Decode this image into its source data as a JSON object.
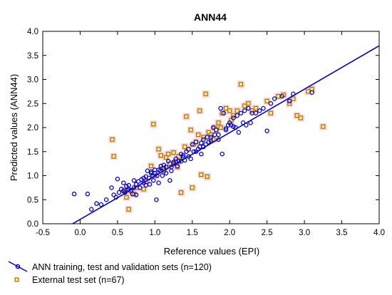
{
  "chart_data": {
    "type": "scatter",
    "title": "ANN44",
    "xlabel": "Reference values (EPI)",
    "ylabel": "Predicted values (ANN44)",
    "xlim": [
      -0.5,
      4.0
    ],
    "ylim": [
      0.0,
      4.0
    ],
    "x_ticks": [
      "-0.5",
      "0.0",
      "0.5",
      "1.0",
      "1.5",
      "2.0",
      "2.5",
      "3.0",
      "3.5",
      "4.0"
    ],
    "y_ticks": [
      "0.0",
      "0.5",
      "1.0",
      "1.5",
      "2.0",
      "2.5",
      "3.0",
      "3.5",
      "4.0"
    ],
    "grid": false,
    "legend_position": "bottom-left",
    "fit_line": {
      "x": [
        -0.1,
        4.0
      ],
      "y": [
        0.0,
        3.7
      ],
      "color": "#0000cc"
    },
    "series": [
      {
        "name": "ANN training, test and validation sets (n=120)",
        "marker": "circle",
        "color": "#0000cc",
        "x": [
          -0.08,
          0.1,
          0.15,
          0.22,
          0.28,
          0.35,
          0.42,
          0.45,
          0.48,
          0.5,
          0.52,
          0.55,
          0.58,
          0.6,
          0.62,
          0.63,
          0.65,
          0.68,
          0.7,
          0.72,
          0.75,
          0.78,
          0.8,
          0.82,
          0.85,
          0.88,
          0.9,
          0.92,
          0.93,
          0.95,
          0.97,
          0.98,
          1.0,
          1.02,
          1.03,
          1.05,
          1.07,
          1.08,
          1.1,
          1.12,
          1.15,
          1.18,
          1.2,
          1.22,
          1.25,
          1.28,
          1.3,
          1.32,
          1.35,
          1.38,
          1.4,
          1.42,
          1.45,
          1.48,
          1.5,
          1.52,
          1.55,
          1.58,
          1.6,
          1.62,
          1.65,
          1.68,
          1.7,
          1.72,
          1.75,
          1.78,
          1.8,
          1.82,
          1.85,
          1.88,
          1.9,
          1.92,
          1.95,
          1.98,
          2.0,
          2.02,
          2.05,
          2.08,
          2.1,
          2.12,
          2.15,
          2.18,
          2.2,
          2.22,
          2.25,
          2.28,
          2.3,
          2.35,
          2.4,
          2.45,
          2.5,
          2.55,
          2.6,
          2.7,
          2.8,
          2.85,
          3.1,
          0.58,
          0.65,
          0.72,
          0.85,
          0.95,
          1.05,
          1.15,
          1.25,
          1.35,
          1.45,
          1.55,
          1.65,
          1.75,
          1.85,
          1.95,
          2.05,
          0.75,
          0.88,
          1.0,
          1.12,
          1.22,
          1.38,
          1.62
        ],
        "y": [
          0.62,
          0.62,
          0.3,
          0.42,
          0.4,
          0.5,
          0.75,
          0.6,
          0.55,
          0.93,
          0.65,
          0.72,
          0.85,
          0.65,
          0.78,
          0.7,
          0.8,
          0.7,
          0.62,
          0.75,
          0.82,
          0.88,
          0.75,
          0.92,
          0.85,
          0.8,
          1.1,
          0.95,
          0.82,
          1.05,
          1.0,
          0.9,
          1.05,
          0.5,
          1.0,
          0.85,
          1.1,
          1.2,
          1.0,
          1.15,
          1.05,
          1.3,
          0.9,
          1.1,
          1.25,
          1.35,
          1.2,
          1.3,
          1.45,
          1.38,
          1.32,
          1.5,
          1.55,
          1.35,
          1.65,
          1.5,
          1.7,
          1.55,
          1.6,
          1.45,
          1.75,
          1.65,
          1.8,
          1.7,
          1.8,
          2.0,
          1.85,
          1.95,
          1.75,
          2.4,
          1.45,
          2.3,
          1.95,
          2.05,
          2.1,
          2.05,
          2.2,
          2.0,
          2.25,
          1.9,
          2.3,
          2.1,
          2.35,
          2.05,
          2.4,
          2.1,
          2.3,
          2.3,
          2.35,
          2.4,
          1.93,
          2.5,
          2.6,
          2.65,
          2.55,
          2.7,
          2.73,
          0.68,
          0.72,
          0.9,
          0.95,
          1.08,
          1.12,
          1.18,
          1.28,
          1.3,
          1.4,
          1.5,
          1.6,
          1.72,
          1.85,
          1.98,
          2.02,
          0.6,
          0.98,
          1.12,
          1.22,
          1.18,
          1.42,
          1.68
        ]
      },
      {
        "name": "External test set (n=67)",
        "marker": "square",
        "color": "#b5651d",
        "x": [
          0.43,
          0.45,
          0.6,
          0.62,
          0.65,
          0.68,
          0.72,
          0.75,
          0.85,
          0.88,
          0.95,
          0.98,
          1.0,
          1.05,
          1.08,
          1.1,
          1.12,
          1.15,
          1.18,
          1.2,
          1.25,
          1.28,
          1.3,
          1.32,
          1.35,
          1.4,
          1.42,
          1.45,
          1.48,
          1.5,
          1.52,
          1.55,
          1.58,
          1.6,
          1.62,
          1.65,
          1.68,
          1.7,
          1.72,
          1.75,
          1.78,
          1.8,
          1.82,
          1.85,
          1.88,
          1.9,
          1.95,
          2.0,
          2.02,
          2.05,
          2.1,
          2.15,
          2.2,
          2.25,
          2.3,
          2.35,
          2.5,
          2.55,
          2.65,
          2.72,
          2.8,
          2.85,
          2.9,
          2.95,
          3.05,
          3.1,
          3.25
        ],
        "y": [
          1.75,
          1.4,
          0.7,
          0.55,
          0.3,
          0.68,
          0.62,
          0.75,
          0.72,
          0.88,
          1.2,
          2.07,
          1.0,
          1.55,
          1.42,
          1.15,
          1.1,
          1.38,
          1.45,
          1.25,
          1.48,
          1.3,
          1.18,
          1.4,
          0.65,
          1.6,
          2.23,
          1.55,
          1.95,
          0.75,
          1.65,
          1.7,
          1.85,
          2.35,
          1.02,
          1.8,
          2.7,
          0.98,
          1.9,
          1.85,
          1.75,
          2.0,
          1.95,
          2.1,
          2.0,
          2.3,
          2.4,
          2.35,
          2.15,
          2.25,
          2.35,
          2.9,
          2.45,
          2.5,
          2.35,
          2.4,
          2.55,
          2.3,
          2.65,
          2.68,
          2.5,
          2.6,
          2.25,
          2.2,
          2.75,
          2.8,
          2.02
        ]
      }
    ]
  }
}
